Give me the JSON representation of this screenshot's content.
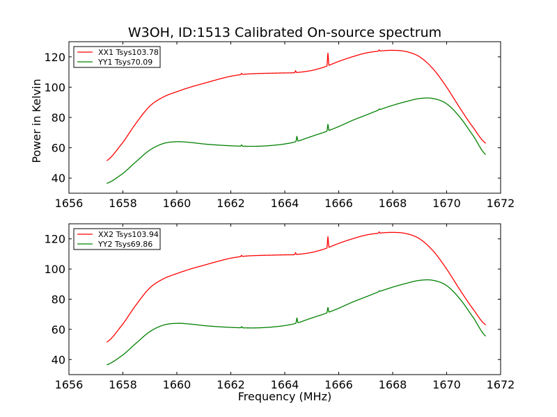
{
  "figure": {
    "title": "W3OH, ID:1513 Calibrated On-source spectrum",
    "ylabel": "Power in Kelvin",
    "xlabel": "Frequency (MHz)"
  },
  "chart_data": [
    {
      "type": "line",
      "title": "W3OH, ID:1513 Calibrated On-source spectrum",
      "xlabel": "",
      "ylabel": "Power in Kelvin",
      "xlim": [
        1656,
        1672
      ],
      "ylim": [
        30,
        130
      ],
      "xticks": [
        "1656",
        "1658",
        "1660",
        "1662",
        "1664",
        "1666",
        "1668",
        "1670",
        "1672"
      ],
      "yticks": [
        "40",
        "60",
        "80",
        "100",
        "120"
      ],
      "legend_position": "top-left",
      "series": [
        {
          "name": "XX1 Tsys103.78",
          "color": "#ff0000",
          "x": [
            1657.4,
            1658.0,
            1658.5,
            1659.0,
            1659.5,
            1660.0,
            1660.5,
            1661.0,
            1661.5,
            1662.0,
            1662.5,
            1663.0,
            1663.5,
            1664.0,
            1664.4,
            1665.0,
            1665.5,
            1666.0,
            1666.5,
            1667.0,
            1667.5,
            1668.0,
            1668.5,
            1669.0,
            1669.5,
            1670.0,
            1670.5,
            1671.0,
            1671.45
          ],
          "y": [
            51.5,
            63.5,
            76.5,
            87.5,
            93.5,
            97.0,
            100.0,
            102.5,
            105.0,
            107.2,
            108.5,
            109.0,
            109.2,
            109.4,
            109.6,
            111.0,
            113.5,
            117.0,
            120.0,
            122.5,
            123.8,
            124.3,
            123.5,
            120.0,
            112.0,
            100.0,
            86.0,
            73.0,
            63.0
          ],
          "spikes": [
            {
              "x": 1662.4,
              "h": 0.8
            },
            {
              "x": 1664.4,
              "h": 1.2
            },
            {
              "x": 1665.6,
              "h": 8.5
            },
            {
              "x": 1667.5,
              "h": 0.8
            }
          ]
        },
        {
          "name": "YY1 Tsys70.09",
          "color": "#008000",
          "x": [
            1657.4,
            1658.0,
            1658.5,
            1659.0,
            1659.5,
            1660.0,
            1660.5,
            1661.0,
            1661.5,
            1662.0,
            1662.5,
            1663.0,
            1663.5,
            1664.0,
            1664.4,
            1665.0,
            1665.5,
            1666.0,
            1666.5,
            1667.0,
            1667.5,
            1668.0,
            1668.5,
            1669.0,
            1669.5,
            1670.0,
            1670.5,
            1671.0,
            1671.45
          ],
          "y": [
            36.5,
            43.0,
            51.0,
            58.5,
            62.8,
            64.0,
            63.5,
            62.5,
            61.8,
            61.3,
            61.0,
            61.0,
            61.5,
            62.5,
            64.0,
            67.5,
            70.5,
            74.0,
            78.0,
            81.5,
            85.0,
            88.0,
            90.5,
            92.5,
            92.5,
            89.0,
            80.0,
            67.5,
            55.5
          ],
          "spikes": [
            {
              "x": 1662.4,
              "h": 0.8
            },
            {
              "x": 1664.45,
              "h": 3.5
            },
            {
              "x": 1665.6,
              "h": 4.5
            },
            {
              "x": 1667.5,
              "h": 0.6
            }
          ]
        }
      ]
    },
    {
      "type": "line",
      "title": "",
      "xlabel": "Frequency (MHz)",
      "ylabel": "",
      "xlim": [
        1656,
        1672
      ],
      "ylim": [
        30,
        130
      ],
      "xticks": [
        "1656",
        "1658",
        "1660",
        "1662",
        "1664",
        "1666",
        "1668",
        "1670",
        "1672"
      ],
      "yticks": [
        "40",
        "60",
        "80",
        "100",
        "120"
      ],
      "legend_position": "top-left",
      "series": [
        {
          "name": "XX2 Tsys103.94",
          "color": "#ff0000",
          "x": [
            1657.4,
            1658.0,
            1658.5,
            1659.0,
            1659.5,
            1660.0,
            1660.5,
            1661.0,
            1661.5,
            1662.0,
            1662.5,
            1663.0,
            1663.5,
            1664.0,
            1664.4,
            1665.0,
            1665.5,
            1666.0,
            1666.5,
            1667.0,
            1667.5,
            1668.0,
            1668.5,
            1669.0,
            1669.5,
            1670.0,
            1670.5,
            1671.0,
            1671.45
          ],
          "y": [
            51.5,
            63.5,
            76.5,
            87.5,
            93.5,
            97.0,
            100.0,
            102.5,
            105.0,
            107.2,
            108.5,
            109.0,
            109.2,
            109.4,
            109.6,
            111.0,
            113.5,
            117.0,
            120.0,
            122.5,
            123.8,
            124.3,
            123.5,
            120.0,
            112.0,
            100.0,
            86.0,
            73.0,
            63.0
          ],
          "spikes": [
            {
              "x": 1662.4,
              "h": 0.8
            },
            {
              "x": 1664.4,
              "h": 1.2
            },
            {
              "x": 1665.6,
              "h": 7.5
            },
            {
              "x": 1667.5,
              "h": 0.8
            }
          ]
        },
        {
          "name": "YY2 Tsys69.86",
          "color": "#008000",
          "x": [
            1657.4,
            1658.0,
            1658.5,
            1659.0,
            1659.5,
            1660.0,
            1660.5,
            1661.0,
            1661.5,
            1662.0,
            1662.5,
            1663.0,
            1663.5,
            1664.0,
            1664.4,
            1665.0,
            1665.5,
            1666.0,
            1666.5,
            1667.0,
            1667.5,
            1668.0,
            1668.5,
            1669.0,
            1669.5,
            1670.0,
            1670.5,
            1671.0,
            1671.45
          ],
          "y": [
            36.5,
            43.0,
            51.0,
            58.5,
            62.8,
            64.0,
            63.5,
            62.5,
            61.8,
            61.3,
            61.0,
            61.0,
            61.5,
            62.5,
            64.0,
            67.5,
            70.5,
            74.0,
            78.0,
            81.5,
            85.0,
            88.0,
            90.5,
            92.5,
            92.5,
            89.0,
            80.0,
            67.5,
            55.5
          ],
          "spikes": [
            {
              "x": 1662.4,
              "h": 0.8
            },
            {
              "x": 1664.45,
              "h": 3.5
            },
            {
              "x": 1665.6,
              "h": 3.5
            },
            {
              "x": 1667.5,
              "h": 0.6
            }
          ]
        }
      ]
    }
  ]
}
